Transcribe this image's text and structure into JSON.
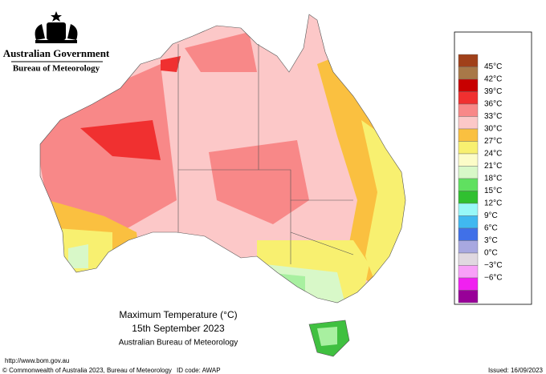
{
  "header": {
    "government": "Australian Government",
    "bureau": "Bureau of Meteorology"
  },
  "title": {
    "line1": "Maximum Temperature (°C)",
    "line2": "15th September 2023",
    "line3": "Australian Bureau of Meteorology"
  },
  "legend": {
    "labels": [
      "45°C",
      "42°C",
      "39°C",
      "36°C",
      "33°C",
      "30°C",
      "27°C",
      "24°C",
      "21°C",
      "18°C",
      "15°C",
      "12°C",
      "9°C",
      "6°C",
      "3°C",
      "0°C",
      "−3°C",
      "−6°C"
    ],
    "colors": [
      "#a0401a",
      "#a87848",
      "#c80000",
      "#f03030",
      "#f88888",
      "#fcc8c8",
      "#fac040",
      "#f8f070",
      "#fcfcc8",
      "#d8f8c8",
      "#60e060",
      "#30c030",
      "#98f8f8",
      "#40b8f0",
      "#4070e8",
      "#a8a8e0",
      "#e0d8e0",
      "#f8a0f8",
      "#f020f0",
      "#980098"
    ]
  },
  "footer": {
    "url": "http://www.bom.gov.au",
    "copyright": "© Commonwealth of Australia 2023, Bureau of Meteorology",
    "id_code": "ID code: AWAP",
    "issued": "Issued: 16/09/2023"
  }
}
